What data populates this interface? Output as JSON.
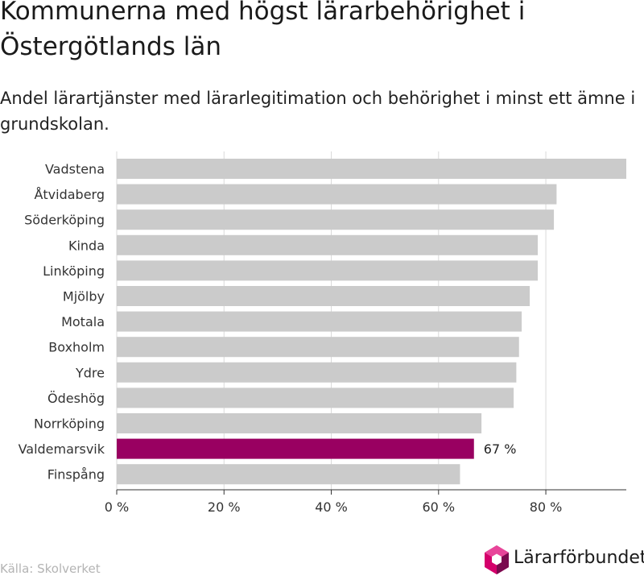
{
  "header": {
    "title": "Kommunerna med högst lärarbehörighet i Östergötlands län",
    "subtitle": "Andel lärartjänster med lärarlegitimation och behörighet i minst ett ämne i grundskolan."
  },
  "footer": {
    "source": "Källa: Skolverket",
    "logo_text": "Lärarförbundet"
  },
  "colors": {
    "bar": "#cbcbcb",
    "highlight": "#990061",
    "grid": "#d9d9d9",
    "axis": "#333333",
    "logo_pink": "#d4006b",
    "logo_purple": "#7a0a4e"
  },
  "chart_data": {
    "type": "bar",
    "orientation": "horizontal",
    "categories": [
      "Vadstena",
      "Åtvidaberg",
      "Söderköping",
      "Kinda",
      "Linköping",
      "Mjölby",
      "Motala",
      "Boxholm",
      "Ydre",
      "Ödeshög",
      "Norrköping",
      "Valdemarsvik",
      "Finspång"
    ],
    "values": [
      95,
      82,
      81.5,
      78.5,
      78.5,
      77,
      75.5,
      75,
      74.5,
      74,
      68,
      66.6,
      64
    ],
    "highlight": "Valdemarsvik",
    "data_labels": [
      {
        "category": "Valdemarsvik",
        "text": "67 %"
      }
    ],
    "xlim": [
      0,
      95
    ],
    "ticks": [
      0,
      20,
      40,
      60,
      80
    ],
    "tick_labels": [
      "0 %",
      "20 %",
      "40 %",
      "60 %",
      "80 %"
    ],
    "grid": true
  }
}
